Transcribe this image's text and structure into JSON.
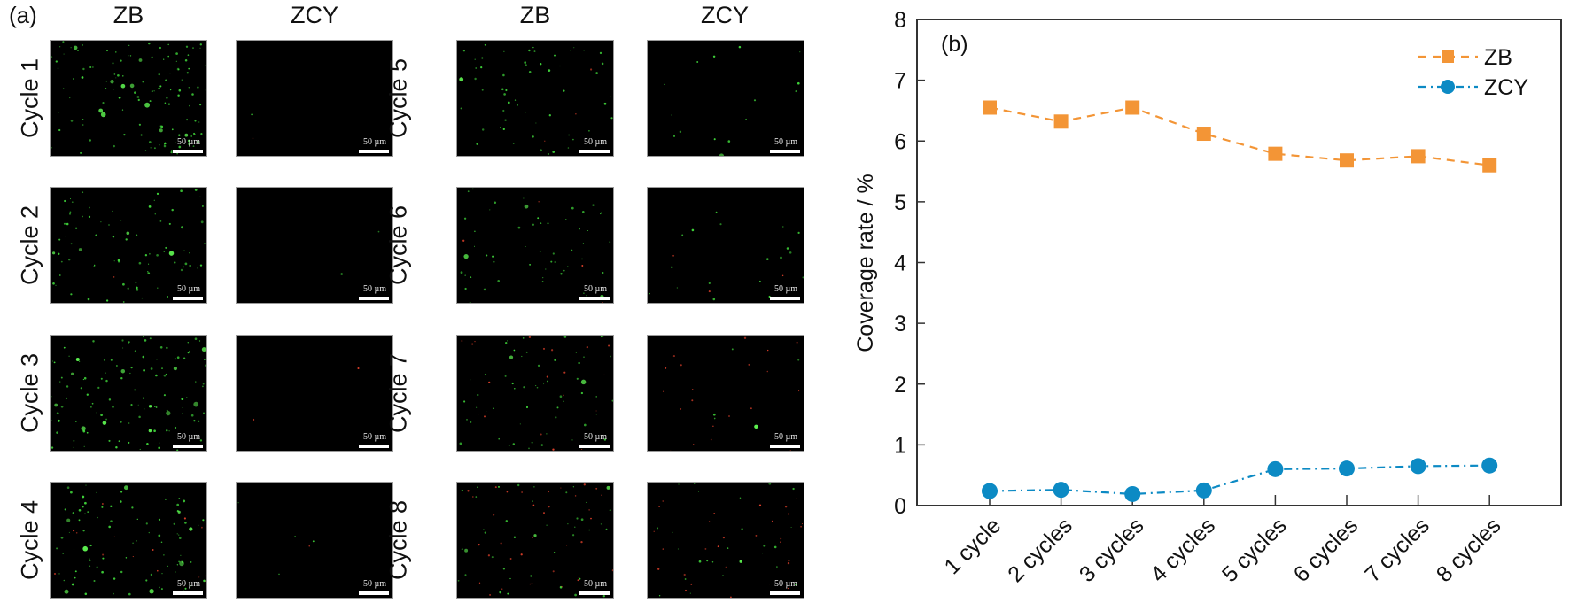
{
  "panel_a": {
    "label": "(a)",
    "column_headers": [
      "ZB",
      "ZCY",
      "ZB",
      "ZCY"
    ],
    "scale_bar_text": "50 µm",
    "rows": [
      {
        "label": "Cycle 1",
        "zb": {
          "green": 120,
          "red": 0,
          "big": 10
        },
        "zcy": {
          "green": 1,
          "red": 1,
          "big": 0
        }
      },
      {
        "label": "Cycle 2",
        "zb": {
          "green": 80,
          "red": 1,
          "big": 4
        },
        "zcy": {
          "green": 2,
          "red": 0,
          "big": 0
        }
      },
      {
        "label": "Cycle 3",
        "zb": {
          "green": 110,
          "red": 0,
          "big": 12
        },
        "zcy": {
          "green": 0,
          "red": 2,
          "big": 0
        }
      },
      {
        "label": "Cycle 4",
        "zb": {
          "green": 85,
          "red": 15,
          "big": 8
        },
        "zcy": {
          "green": 4,
          "red": 1,
          "big": 0
        }
      },
      {
        "label": "Cycle 5",
        "zb": {
          "green": 55,
          "red": 3,
          "big": 1
        },
        "zcy": {
          "green": 14,
          "red": 0,
          "big": 1
        }
      },
      {
        "label": "Cycle 6",
        "zb": {
          "green": 50,
          "red": 4,
          "big": 3
        },
        "zcy": {
          "green": 18,
          "red": 3,
          "big": 0
        }
      },
      {
        "label": "Cycle 7",
        "zb": {
          "green": 55,
          "red": 20,
          "big": 2
        },
        "zcy": {
          "green": 4,
          "red": 20,
          "big": 1
        }
      },
      {
        "label": "Cycle 8",
        "zb": {
          "green": 40,
          "red": 35,
          "big": 3
        },
        "zcy": {
          "green": 25,
          "red": 30,
          "big": 1
        }
      }
    ]
  },
  "chart_data": {
    "type": "line",
    "panel_label": "(b)",
    "categories": [
      "1 cycle",
      "2 cycles",
      "3 cycles",
      "4 cycles",
      "5 cycles",
      "6 cycles",
      "7 cycles",
      "8 cycles"
    ],
    "series": [
      {
        "name": "ZB",
        "values": [
          6.55,
          6.32,
          6.55,
          6.12,
          5.79,
          5.68,
          5.75,
          5.6
        ],
        "color": "#f39536",
        "marker": "square",
        "line_style": "dashed"
      },
      {
        "name": "ZCY",
        "values": [
          0.24,
          0.26,
          0.19,
          0.25,
          0.6,
          0.61,
          0.65,
          0.66
        ],
        "color": "#0c8ac4",
        "marker": "circle",
        "line_style": "dash-dot"
      }
    ],
    "title": "",
    "xlabel": "",
    "ylabel": "Coverage rate / %",
    "ylim": [
      0,
      8
    ],
    "yticks": [
      "0",
      "1",
      "2",
      "3",
      "4",
      "5",
      "6",
      "7",
      "8"
    ],
    "grid": false,
    "legend_position": "top-right"
  }
}
